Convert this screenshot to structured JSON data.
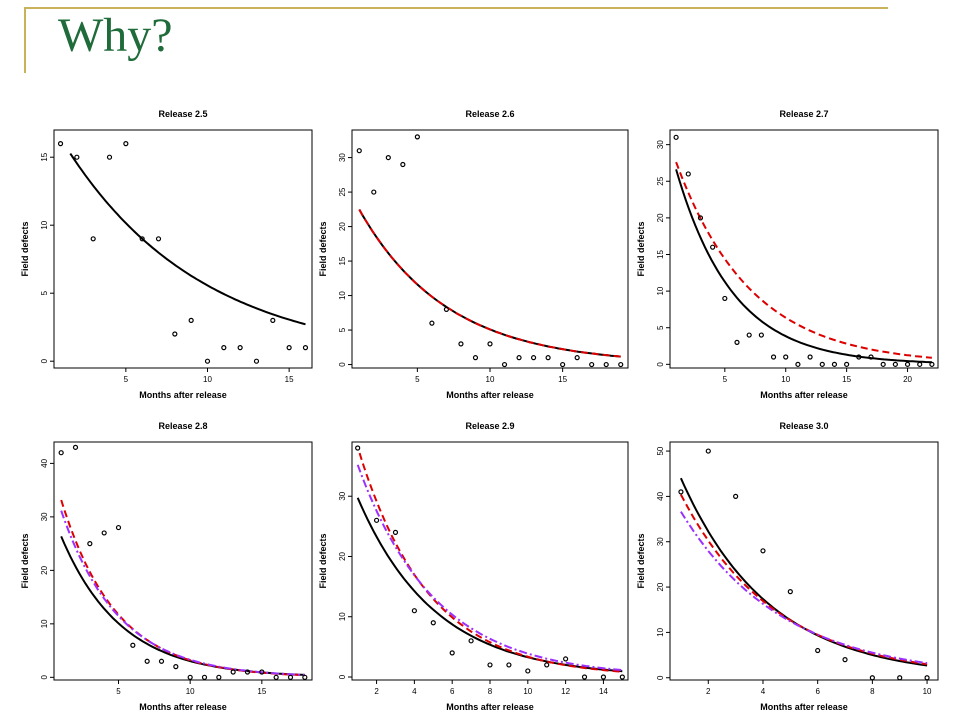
{
  "slide": {
    "title": "Why?"
  },
  "colors": {
    "accent_line": "#c9b25a",
    "title": "#1f6b3a",
    "fit_black": "#000000",
    "fit_red": "#dd0000",
    "fit_purple": "#9b30ff"
  },
  "chart_data": [
    {
      "type": "scatter",
      "title": "Release 2.5",
      "xlabel": "Months after release",
      "ylabel": "Field defects",
      "xlim": [
        0.6,
        16.4
      ],
      "ylim": [
        -0.5,
        17
      ],
      "xticks": [
        5,
        10,
        15
      ],
      "yticks": [
        0,
        5,
        10,
        15
      ],
      "points": {
        "x": [
          1,
          2,
          3,
          4,
          5,
          6,
          7,
          8,
          9,
          10,
          11,
          12,
          13,
          14,
          15,
          16
        ],
        "y": [
          16,
          15,
          9,
          15,
          16,
          9,
          9,
          2,
          3,
          0,
          1,
          1,
          0,
          3,
          1,
          1
        ]
      },
      "fits": [
        {
          "color": "#000000",
          "style": "solid",
          "a": 18.5,
          "b": 0.12,
          "x0": 1.6,
          "x1": 16
        }
      ],
      "grid": false
    },
    {
      "type": "scatter",
      "title": "Release 2.6",
      "xlabel": "Months after release",
      "ylabel": "Field defects",
      "xlim": [
        0.5,
        19.5
      ],
      "ylim": [
        -0.5,
        34
      ],
      "xticks": [
        5,
        10,
        15
      ],
      "yticks": [
        0,
        5,
        10,
        15,
        20,
        25,
        30
      ],
      "points": {
        "x": [
          1,
          2,
          3,
          4,
          5,
          6,
          7,
          8,
          9,
          10,
          11,
          12,
          13,
          14,
          15,
          16,
          17,
          18,
          19
        ],
        "y": [
          31,
          25,
          30,
          29,
          33,
          6,
          8,
          3,
          1,
          3,
          0,
          1,
          1,
          1,
          0,
          1,
          0,
          0,
          0
        ]
      },
      "fits": [
        {
          "color": "#000000",
          "style": "solid",
          "a": 26.5,
          "b": 0.165,
          "x0": 1,
          "x1": 19
        },
        {
          "color": "#dd0000",
          "style": "dashed",
          "a": 26.5,
          "b": 0.165,
          "x0": 1,
          "x1": 19
        }
      ],
      "grid": false
    },
    {
      "type": "scatter",
      "title": "Release 2.7",
      "xlabel": "Months after release",
      "ylabel": "Field defects",
      "xlim": [
        0.5,
        22.5
      ],
      "ylim": [
        -0.5,
        32
      ],
      "xticks": [
        5,
        10,
        15,
        20
      ],
      "yticks": [
        0,
        5,
        10,
        15,
        20,
        25,
        30
      ],
      "points": {
        "x": [
          1,
          2,
          3,
          4,
          5,
          6,
          7,
          8,
          9,
          10,
          11,
          12,
          13,
          14,
          15,
          16,
          17,
          18,
          19,
          20,
          21,
          22
        ],
        "y": [
          31,
          26,
          20,
          16,
          9,
          3,
          4,
          4,
          1,
          1,
          0,
          1,
          0,
          0,
          0,
          1,
          1,
          0,
          0,
          0,
          0,
          0
        ]
      },
      "fits": [
        {
          "color": "#000000",
          "style": "solid",
          "a": 33,
          "b": 0.215,
          "x0": 1,
          "x1": 22
        },
        {
          "color": "#dd0000",
          "style": "dashed",
          "a": 32.5,
          "b": 0.163,
          "x0": 1,
          "x1": 22
        }
      ],
      "grid": false
    },
    {
      "type": "scatter",
      "title": "Release 2.8",
      "xlabel": "Months after release",
      "ylabel": "Field defects",
      "xlim": [
        0.5,
        18.5
      ],
      "ylim": [
        -0.5,
        44
      ],
      "xticks": [
        5,
        10,
        15
      ],
      "yticks": [
        0,
        10,
        20,
        30,
        40
      ],
      "points": {
        "x": [
          1,
          2,
          3,
          4,
          5,
          6,
          7,
          8,
          9,
          10,
          11,
          12,
          13,
          14,
          15,
          16,
          17,
          18
        ],
        "y": [
          42,
          43,
          25,
          27,
          28,
          6,
          3,
          3,
          2,
          0,
          0,
          0,
          1,
          1,
          1,
          0,
          0,
          0
        ]
      },
      "fits": [
        {
          "color": "#000000",
          "style": "solid",
          "a": 33.5,
          "b": 0.24,
          "x0": 1,
          "x1": 18
        },
        {
          "color": "#dd0000",
          "style": "dashed",
          "a": 43,
          "b": 0.26,
          "x0": 1,
          "x1": 18
        },
        {
          "color": "#9b30ff",
          "style": "dashdot",
          "a": 40,
          "b": 0.25,
          "x0": 1,
          "x1": 18
        }
      ],
      "grid": false
    },
    {
      "type": "scatter",
      "title": "Release 2.9",
      "xlabel": "Months after release",
      "ylabel": "Field defects",
      "xlim": [
        0.7,
        15.3
      ],
      "ylim": [
        -0.5,
        39
      ],
      "xticks": [
        2,
        4,
        6,
        8,
        10,
        12,
        14
      ],
      "yticks": [
        0,
        10,
        20,
        30
      ],
      "points": {
        "x": [
          1,
          2,
          3,
          4,
          5,
          6,
          7,
          8,
          9,
          10,
          11,
          12,
          13,
          14,
          15
        ],
        "y": [
          38,
          26,
          24,
          11,
          9,
          4,
          6,
          2,
          2,
          1,
          2,
          3,
          0,
          0,
          0
        ]
      },
      "fits": [
        {
          "color": "#000000",
          "style": "solid",
          "a": 38,
          "b": 0.245,
          "x0": 1,
          "x1": 15
        },
        {
          "color": "#dd0000",
          "style": "dashed",
          "a": 50,
          "b": 0.27,
          "x0": 1.1,
          "x1": 15
        },
        {
          "color": "#9b30ff",
          "style": "dashdot",
          "a": 45,
          "b": 0.245,
          "x0": 1,
          "x1": 15
        }
      ],
      "grid": false
    },
    {
      "type": "scatter",
      "title": "Release 3.0",
      "xlabel": "Months after release",
      "ylabel": "Field defects",
      "xlim": [
        0.6,
        10.4
      ],
      "ylim": [
        -0.5,
        52
      ],
      "xticks": [
        2,
        4,
        6,
        8,
        10
      ],
      "yticks": [
        0,
        10,
        20,
        30,
        40,
        50
      ],
      "points": {
        "x": [
          1,
          2,
          3,
          4,
          5,
          6,
          7,
          8,
          9,
          10
        ],
        "y": [
          41,
          50,
          40,
          28,
          19,
          6,
          4,
          0,
          0,
          0
        ]
      },
      "fits": [
        {
          "color": "#000000",
          "style": "solid",
          "a": 60,
          "b": 0.31,
          "x0": 1,
          "x1": 10
        },
        {
          "color": "#dd0000",
          "style": "dashed",
          "a": 54,
          "b": 0.29,
          "x0": 1,
          "x1": 10
        },
        {
          "color": "#9b30ff",
          "style": "dashdot",
          "a": 48,
          "b": 0.27,
          "x0": 1,
          "x1": 10
        }
      ],
      "grid": false
    }
  ]
}
